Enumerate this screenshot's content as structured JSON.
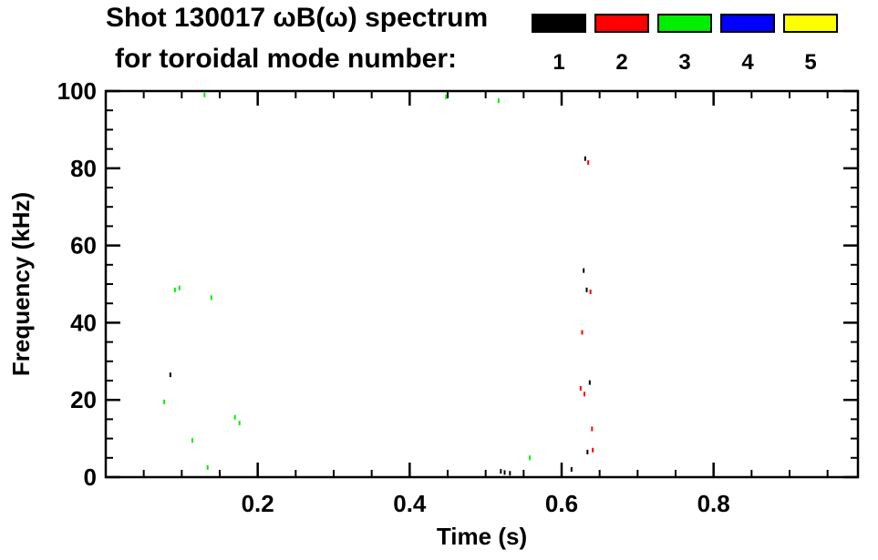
{
  "header": {
    "title_line1": "Shot 130017 ωB(ω) spectrum",
    "title_line2": "for toroidal mode number:"
  },
  "legend": {
    "modes": [
      {
        "label": "1",
        "color": "#000000"
      },
      {
        "label": "2",
        "color": "#ff0000"
      },
      {
        "label": "3",
        "color": "#00ee00"
      },
      {
        "label": "4",
        "color": "#0000ff"
      },
      {
        "label": "5",
        "color": "#ffff00"
      }
    ]
  },
  "chart_data": {
    "type": "scatter",
    "title": "Shot 130017 ωB(ω) spectrum for toroidal mode number: 1 2 3 4 5",
    "xlabel": "Time (s)",
    "ylabel": "Frequency (kHz)",
    "xlim": [
      0.0,
      0.99
    ],
    "ylim": [
      0,
      100
    ],
    "xticks_major": [
      0.2,
      0.4,
      0.6,
      0.8
    ],
    "xtick_labels": [
      "0.2",
      "0.4",
      "0.6",
      "0.8"
    ],
    "yticks_major": [
      0,
      20,
      40,
      60,
      80,
      100
    ],
    "ytick_labels": [
      "0",
      "20",
      "40",
      "60",
      "80",
      "100"
    ],
    "x_minor_step": 0.05,
    "y_minor_step": 5,
    "grid": false,
    "legend_position": "top-right",
    "series": [
      {
        "name": "n=1",
        "color": "#000000",
        "points": [
          [
            0.52,
            1.5
          ],
          [
            0.525,
            1.2
          ],
          [
            0.532,
            1.0
          ],
          [
            0.613,
            2.0
          ],
          [
            0.085,
            26.5
          ],
          [
            0.637,
            24.5
          ],
          [
            0.629,
            53.5
          ],
          [
            0.633,
            48.5
          ],
          [
            0.631,
            82.5
          ],
          [
            0.634,
            6.5
          ]
        ]
      },
      {
        "name": "n=2",
        "color": "#ff0000",
        "points": [
          [
            0.625,
            23.0
          ],
          [
            0.63,
            21.5
          ],
          [
            0.627,
            37.5
          ],
          [
            0.64,
            12.5
          ],
          [
            0.641,
            7.0
          ],
          [
            0.635,
            81.5
          ],
          [
            0.638,
            48.0
          ]
        ]
      },
      {
        "name": "n=3",
        "color": "#00ee00",
        "points": [
          [
            0.13,
            99.0
          ],
          [
            0.448,
            98.5
          ],
          [
            0.517,
            97.5
          ],
          [
            0.091,
            48.5
          ],
          [
            0.097,
            49.0
          ],
          [
            0.139,
            46.5
          ],
          [
            0.077,
            19.5
          ],
          [
            0.17,
            15.5
          ],
          [
            0.176,
            14.0
          ],
          [
            0.114,
            9.5
          ],
          [
            0.558,
            5.0
          ],
          [
            0.134,
            2.5
          ]
        ]
      },
      {
        "name": "n=4",
        "color": "#0000ff",
        "points": []
      },
      {
        "name": "n=5",
        "color": "#ffff00",
        "points": []
      }
    ]
  }
}
